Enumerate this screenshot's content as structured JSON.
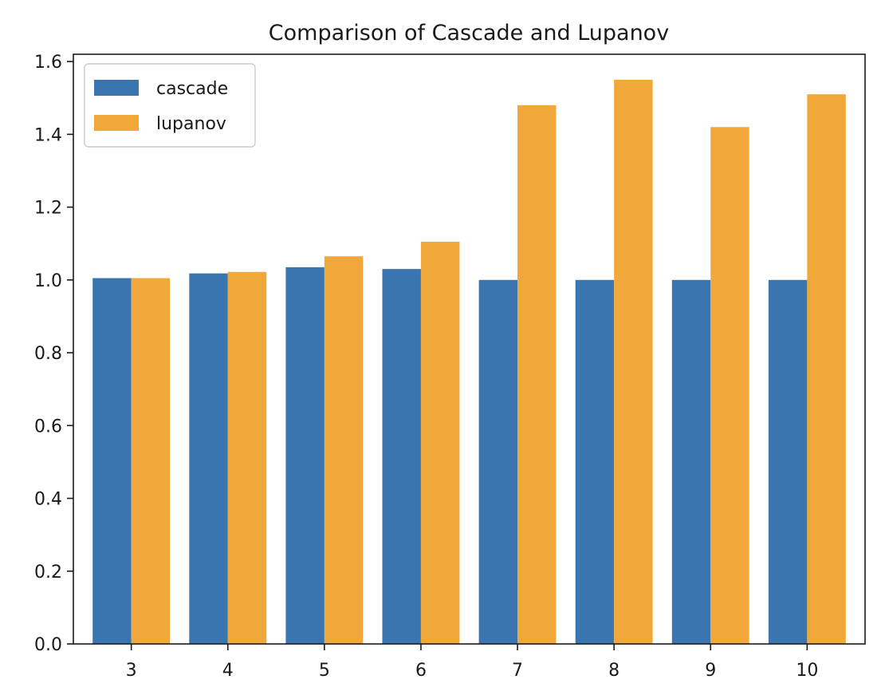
{
  "chart_data": {
    "type": "bar",
    "title": "Comparison of Cascade and Lupanov",
    "xlabel": "",
    "ylabel": "",
    "categories": [
      "3",
      "4",
      "5",
      "6",
      "7",
      "8",
      "9",
      "10"
    ],
    "series": [
      {
        "name": "cascade",
        "color": "#3a75af",
        "values": [
          1.005,
          1.018,
          1.035,
          1.03,
          1.0,
          1.0,
          1.0,
          1.0
        ]
      },
      {
        "name": "lupanov",
        "color": "#f0a83a",
        "values": [
          1.005,
          1.022,
          1.065,
          1.105,
          1.48,
          1.55,
          1.42,
          1.51
        ]
      }
    ],
    "ylim": [
      0,
      1.62
    ],
    "yticks": [
      "0.0",
      "0.2",
      "0.4",
      "0.6",
      "0.8",
      "1.0",
      "1.2",
      "1.4",
      "1.6"
    ],
    "grid": false,
    "legend_position": "top-left"
  }
}
